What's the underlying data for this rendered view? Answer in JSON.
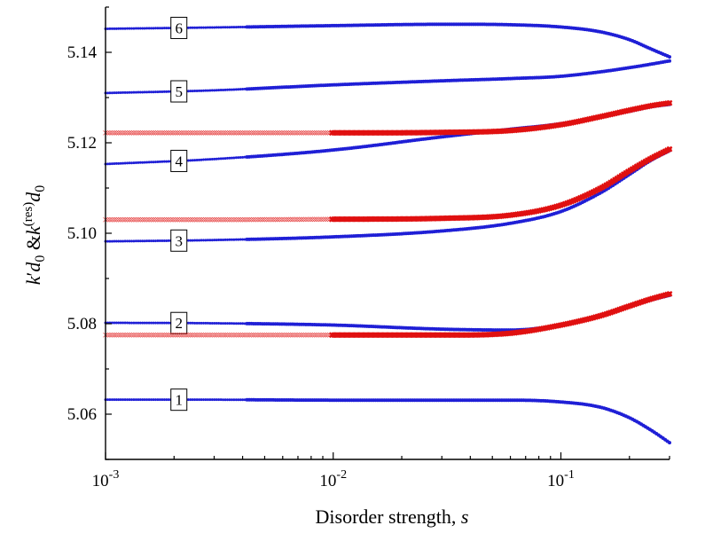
{
  "chart_data": {
    "type": "line",
    "title": "",
    "xlabel": "Disorder strength, s",
    "xlabel_main": "Disorder strength, ",
    "xlabel_var": "s",
    "ylabel": "k'd0 &k(res)d0",
    "ylabel_parts": {
      "k1": "k",
      "prime": "′",
      "d1": "d",
      "sub1": "0",
      "amp": " &",
      "k2": "k",
      "sup": "(res)",
      "d2": "d",
      "sub2": "0"
    },
    "xscale": "log",
    "xlim": [
      0.001,
      0.3
    ],
    "ylim": [
      5.05,
      5.15
    ],
    "x_ticks": [
      {
        "value": 0.001,
        "base": "10",
        "exp": "-3"
      },
      {
        "value": 0.01,
        "base": "10",
        "exp": "-2"
      },
      {
        "value": 0.1,
        "base": "10",
        "exp": "-1"
      }
    ],
    "y_ticks": [
      {
        "value": 5.06,
        "label": "5.06"
      },
      {
        "value": 5.08,
        "label": "5.08"
      },
      {
        "value": 5.1,
        "label": "5.10"
      },
      {
        "value": 5.12,
        "label": "5.12"
      },
      {
        "value": 5.14,
        "label": "5.14"
      }
    ],
    "series_color_blue": "#1f1fd6",
    "series_color_red": "#e01010",
    "series": [
      {
        "name": "1",
        "kind": "k'd0",
        "color": "#1f1fd6",
        "label_x": 0.0021,
        "x": [
          0.001,
          0.003,
          0.01,
          0.03,
          0.06,
          0.1,
          0.15,
          0.2,
          0.25,
          0.3
        ],
        "y": [
          5.0632,
          5.0632,
          5.0631,
          5.0631,
          5.0631,
          5.0627,
          5.0615,
          5.0592,
          5.0564,
          5.0537
        ]
      },
      {
        "name": "2",
        "kind": "k'd0",
        "color": "#1f1fd6",
        "label_x": 0.0021,
        "x": [
          0.001,
          0.003,
          0.01,
          0.03,
          0.06,
          0.1,
          0.15,
          0.2,
          0.25,
          0.3
        ],
        "y": [
          5.0802,
          5.0801,
          5.0797,
          5.0788,
          5.0786,
          5.0797,
          5.0818,
          5.0838,
          5.0853,
          5.0863
        ]
      },
      {
        "name": "3",
        "kind": "k'd0",
        "color": "#1f1fd6",
        "label_x": 0.0021,
        "x": [
          0.001,
          0.003,
          0.01,
          0.03,
          0.06,
          0.1,
          0.15,
          0.2,
          0.25,
          0.3
        ],
        "y": [
          5.0982,
          5.0985,
          5.0992,
          5.1005,
          5.1022,
          5.1048,
          5.109,
          5.113,
          5.1162,
          5.1183
        ]
      },
      {
        "name": "4",
        "kind": "k'd0",
        "color": "#1f1fd6",
        "label_x": 0.0021,
        "x": [
          0.001,
          0.003,
          0.01,
          0.03,
          0.06,
          0.1,
          0.15,
          0.2,
          0.25,
          0.3
        ],
        "y": [
          5.1153,
          5.1164,
          5.1184,
          5.1213,
          5.123,
          5.1242,
          5.1257,
          5.127,
          5.128,
          5.1285
        ]
      },
      {
        "name": "5",
        "kind": "k'd0",
        "color": "#1f1fd6",
        "label_x": 0.0021,
        "x": [
          0.001,
          0.003,
          0.01,
          0.03,
          0.06,
          0.1,
          0.15,
          0.2,
          0.25,
          0.3
        ],
        "y": [
          5.131,
          5.1316,
          5.1328,
          5.1337,
          5.1342,
          5.1347,
          5.1357,
          5.1366,
          5.1374,
          5.1381
        ]
      },
      {
        "name": "6",
        "kind": "k'd0",
        "color": "#1f1fd6",
        "label_x": 0.0021,
        "x": [
          0.001,
          0.003,
          0.01,
          0.03,
          0.06,
          0.1,
          0.15,
          0.2,
          0.25,
          0.3
        ],
        "y": [
          5.1452,
          5.1455,
          5.1459,
          5.1462,
          5.1461,
          5.1456,
          5.1445,
          5.1428,
          5.1407,
          5.139
        ]
      },
      {
        "name": "res-1",
        "kind": "k(res)d0",
        "color": "#e01010",
        "label_x": null,
        "x": [
          0.001,
          0.003,
          0.01,
          0.03,
          0.06,
          0.1,
          0.15,
          0.2,
          0.25,
          0.3
        ],
        "y": [
          5.0775,
          5.0775,
          5.0775,
          5.0775,
          5.0779,
          5.0797,
          5.0818,
          5.0839,
          5.0855,
          5.0866
        ]
      },
      {
        "name": "res-2",
        "kind": "k(res)d0",
        "color": "#e01010",
        "label_x": null,
        "x": [
          0.001,
          0.003,
          0.01,
          0.03,
          0.06,
          0.1,
          0.15,
          0.2,
          0.25,
          0.3
        ],
        "y": [
          5.103,
          5.103,
          5.1031,
          5.1033,
          5.104,
          5.1062,
          5.11,
          5.1138,
          5.1166,
          5.1186
        ]
      },
      {
        "name": "res-3",
        "kind": "k(res)d0",
        "color": "#e01010",
        "label_x": null,
        "x": [
          0.001,
          0.003,
          0.01,
          0.03,
          0.06,
          0.1,
          0.15,
          0.2,
          0.25,
          0.3
        ],
        "y": [
          5.1222,
          5.1222,
          5.1222,
          5.1223,
          5.1227,
          5.124,
          5.1258,
          5.1272,
          5.1282,
          5.1288
        ]
      }
    ]
  }
}
